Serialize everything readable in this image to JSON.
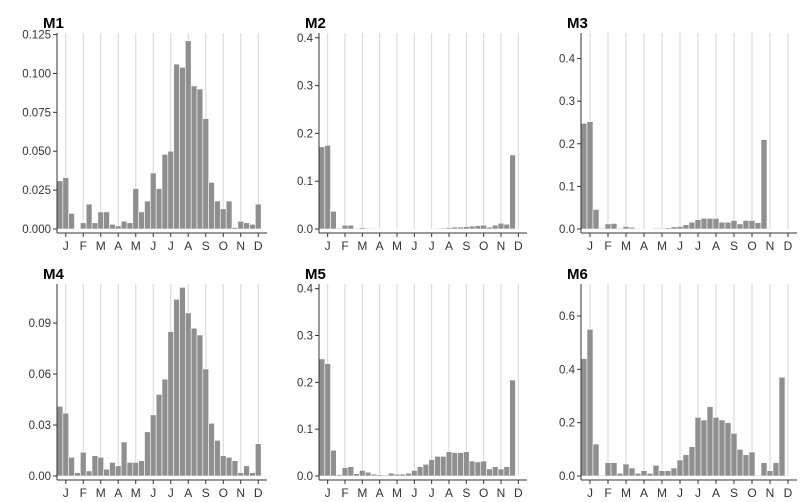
{
  "chart_data": [
    {
      "type": "bar",
      "title": "M1",
      "ylim": [
        0,
        0.126
      ],
      "yticks": [
        "0.000",
        "0.025",
        "0.050",
        "0.075",
        "0.100",
        "0.125"
      ],
      "xticks": [
        "J",
        "F",
        "M",
        "A",
        "M",
        "J",
        "J",
        "A",
        "S",
        "O",
        "N",
        "D"
      ],
      "grid": "vertical",
      "values": [
        0.031,
        0.033,
        0.01,
        0.0,
        0.004,
        0.016,
        0.004,
        0.011,
        0.011,
        0.003,
        0.002,
        0.005,
        0.004,
        0.026,
        0.011,
        0.018,
        0.036,
        0.026,
        0.048,
        0.05,
        0.106,
        0.104,
        0.121,
        0.092,
        0.09,
        0.071,
        0.03,
        0.018,
        0.013,
        0.018,
        0.001,
        0.005,
        0.004,
        0.003,
        0.016,
        0.0
      ]
    },
    {
      "type": "bar",
      "title": "M2",
      "ylim": [
        0,
        0.41
      ],
      "yticks": [
        "0.0",
        "0.1",
        "0.2",
        "0.3",
        "0.4"
      ],
      "xticks": [
        "J",
        "F",
        "M",
        "A",
        "M",
        "J",
        "J",
        "A",
        "S",
        "O",
        "N",
        "D"
      ],
      "grid": "vertical",
      "values": [
        0.172,
        0.175,
        0.037,
        0.002,
        0.008,
        0.008,
        0.001,
        0.003,
        0.001,
        0.001,
        0.0,
        0.0,
        0.0,
        0.0,
        0.0,
        0.0,
        0.0,
        0.0,
        0.0,
        0.0,
        0.001,
        0.002,
        0.003,
        0.004,
        0.004,
        0.005,
        0.006,
        0.007,
        0.008,
        0.004,
        0.008,
        0.012,
        0.01,
        0.155,
        0.0,
        0.0
      ]
    },
    {
      "type": "bar",
      "title": "M3",
      "ylim": [
        0,
        0.46
      ],
      "yticks": [
        "0.0",
        "0.1",
        "0.2",
        "0.3",
        "0.4"
      ],
      "xticks": [
        "J",
        "F",
        "M",
        "A",
        "M",
        "J",
        "J",
        "A",
        "S",
        "O",
        "N",
        "D"
      ],
      "grid": "vertical",
      "values": [
        0.248,
        0.252,
        0.046,
        0.002,
        0.012,
        0.013,
        0.002,
        0.006,
        0.004,
        0.001,
        0.0,
        0.0,
        0.002,
        0.002,
        0.003,
        0.005,
        0.006,
        0.01,
        0.016,
        0.022,
        0.025,
        0.025,
        0.025,
        0.016,
        0.016,
        0.02,
        0.012,
        0.02,
        0.02,
        0.015,
        0.21,
        0.0,
        0.0,
        0.0,
        0.0,
        0.0
      ]
    },
    {
      "type": "bar",
      "title": "M4",
      "ylim": [
        0,
        0.113
      ],
      "yticks": [
        "0.00",
        "0.03",
        "0.06",
        "0.09"
      ],
      "xticks": [
        "J",
        "F",
        "M",
        "A",
        "M",
        "J",
        "J",
        "A",
        "S",
        "O",
        "N",
        "D"
      ],
      "grid": "vertical",
      "values": [
        0.041,
        0.037,
        0.011,
        0.002,
        0.014,
        0.003,
        0.012,
        0.011,
        0.004,
        0.008,
        0.006,
        0.02,
        0.008,
        0.008,
        0.009,
        0.026,
        0.036,
        0.048,
        0.057,
        0.085,
        0.104,
        0.111,
        0.096,
        0.087,
        0.083,
        0.063,
        0.031,
        0.021,
        0.012,
        0.011,
        0.009,
        0.002,
        0.006,
        0.002,
        0.019,
        0.0
      ]
    },
    {
      "type": "bar",
      "title": "M5",
      "ylim": [
        0,
        0.41
      ],
      "yticks": [
        "0.0",
        "0.1",
        "0.2",
        "0.3",
        "0.4"
      ],
      "xticks": [
        "J",
        "F",
        "M",
        "A",
        "M",
        "J",
        "J",
        "A",
        "S",
        "O",
        "N",
        "D"
      ],
      "grid": "vertical",
      "values": [
        0.25,
        0.24,
        0.055,
        0.003,
        0.018,
        0.02,
        0.005,
        0.012,
        0.008,
        0.004,
        0.003,
        0.002,
        0.006,
        0.004,
        0.004,
        0.006,
        0.012,
        0.02,
        0.025,
        0.035,
        0.042,
        0.042,
        0.052,
        0.05,
        0.05,
        0.052,
        0.032,
        0.03,
        0.032,
        0.015,
        0.02,
        0.015,
        0.02,
        0.205,
        0.0,
        0.0
      ]
    },
    {
      "type": "bar",
      "title": "M6",
      "ylim": [
        0,
        0.72
      ],
      "yticks": [
        "0.0",
        "0.2",
        "0.4",
        "0.6"
      ],
      "xticks": [
        "J",
        "F",
        "M",
        "A",
        "M",
        "J",
        "J",
        "A",
        "S",
        "O",
        "N",
        "D"
      ],
      "grid": "vertical",
      "values": [
        0.44,
        0.55,
        0.12,
        0.002,
        0.05,
        0.05,
        0.01,
        0.045,
        0.03,
        0.01,
        0.02,
        0.01,
        0.04,
        0.02,
        0.02,
        0.03,
        0.06,
        0.08,
        0.11,
        0.22,
        0.21,
        0.26,
        0.22,
        0.21,
        0.2,
        0.16,
        0.1,
        0.08,
        0.09,
        0.002,
        0.05,
        0.02,
        0.05,
        0.37,
        0.0,
        0.0
      ]
    }
  ]
}
